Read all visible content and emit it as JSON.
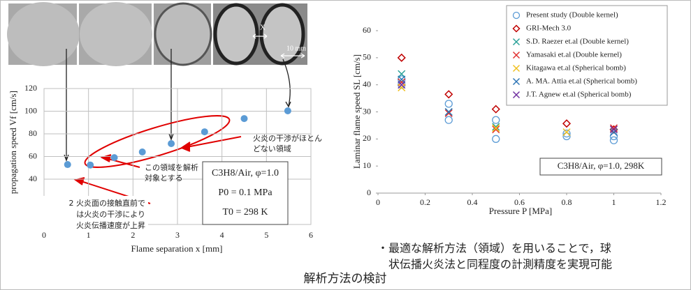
{
  "chart_data": [
    {
      "type": "scatter",
      "x_label": "Flame separation x [mm]",
      "y_label": "Flame propagation speed Vf [cm/s]",
      "xlim": [
        0,
        6
      ],
      "xticks": [
        0,
        1,
        2,
        3,
        4,
        5,
        6
      ],
      "ylim": [
        0,
        120
      ],
      "yticks": [
        40,
        60,
        80,
        100,
        120
      ],
      "grid": true,
      "series": [
        {
          "color": "#5b9bd5",
          "marker": "filled-circle",
          "x": [
            0.53,
            1.04,
            1.58,
            2.21,
            2.86,
            3.61,
            4.5,
            5.48
          ],
          "values": [
            52.9,
            52.5,
            59,
            64,
            71.4,
            81.8,
            93.5,
            100.3
          ]
        }
      ],
      "annotations": [
        {
          "lines": [
            "火炎の干渉がほとん",
            "どない領域"
          ]
        },
        {
          "lines": [
            "この領域を解析",
            "対象とする"
          ]
        },
        {
          "lines": [
            "2 火炎面の接触直前で",
            "は火炎の干渉により",
            "火炎伝播速度が上昇"
          ]
        },
        {
          "lines": [
            "C3H8/Air,  φ=1.0",
            "P0 = 0.1 MPa",
            "T0 = 298 K"
          ]
        }
      ]
    },
    {
      "type": "scatter",
      "x_label": "Pressure P [MPa]",
      "y_label": "Laminar flame speed SL [cm/s]",
      "xlim": [
        0,
        1.2
      ],
      "xticks": [
        0,
        0.2,
        0.4,
        0.6,
        0.8,
        1,
        1.2
      ],
      "ylim": [
        0,
        60
      ],
      "yticks": [
        0,
        10,
        20,
        30,
        40,
        50,
        60
      ],
      "grid": false,
      "legend": "upper right",
      "series": [
        {
          "name": "Present study (Double kernel)",
          "color": "#5b9bd5",
          "marker": "circle",
          "x": [
            0.1,
            0.1,
            0.3,
            0.3,
            0.5,
            0.5,
            0.8,
            0.8,
            1,
            1
          ],
          "values": [
            42,
            40,
            33,
            27,
            27,
            20,
            22,
            21,
            21,
            19.5
          ]
        },
        {
          "name": "GRI-Mech 3.0",
          "color": "#c00000",
          "marker": "diamond",
          "x": [
            0.1,
            0.3,
            0.5,
            0.8,
            1
          ],
          "values": [
            50,
            36.5,
            31,
            25.7,
            23.5
          ]
        },
        {
          "name": "S.D. Raezer et.al (Double kernel)",
          "color": "#2aa198",
          "marker": "x",
          "x": [
            0.1,
            0.3,
            0.5,
            1
          ],
          "values": [
            44,
            30,
            24.5,
            23.5
          ]
        },
        {
          "name": "Yamasaki et.al (Double kernel)",
          "color": "#e03030",
          "marker": "x",
          "x": [
            0.1,
            0.3,
            0.5,
            1
          ],
          "values": [
            41,
            29.5,
            23.5,
            24
          ]
        },
        {
          "name": "Kitagawa et.al (Spherical bomb)",
          "color": "#f0c020",
          "marker": "x",
          "x": [
            0.1,
            0.5,
            0.8
          ],
          "values": [
            39,
            24,
            22.5
          ]
        },
        {
          "name": "A. MA. Attia et.al (Spherical bomb)",
          "color": "#2e75b6",
          "marker": "x",
          "x": [
            0.1,
            0.3,
            1
          ],
          "values": [
            42,
            30,
            22.5
          ]
        },
        {
          "name": "J.T. Agnew et.al (Spherical bomb)",
          "color": "#7030a0",
          "marker": "x",
          "x": [
            0.1,
            1
          ],
          "values": [
            40,
            23.5
          ]
        }
      ],
      "annotations": [
        {
          "lines": [
            "C3H8/Air,  φ=1.0, 298K"
          ]
        }
      ]
    }
  ],
  "photo_labels": [
    "X",
    "10 mm"
  ],
  "caption": [
    "・最適な解析方法（領域）を用いることで，球",
    "状伝播火炎法と同程度の計測精度を実現可能"
  ],
  "footer": "解析方法の検討"
}
